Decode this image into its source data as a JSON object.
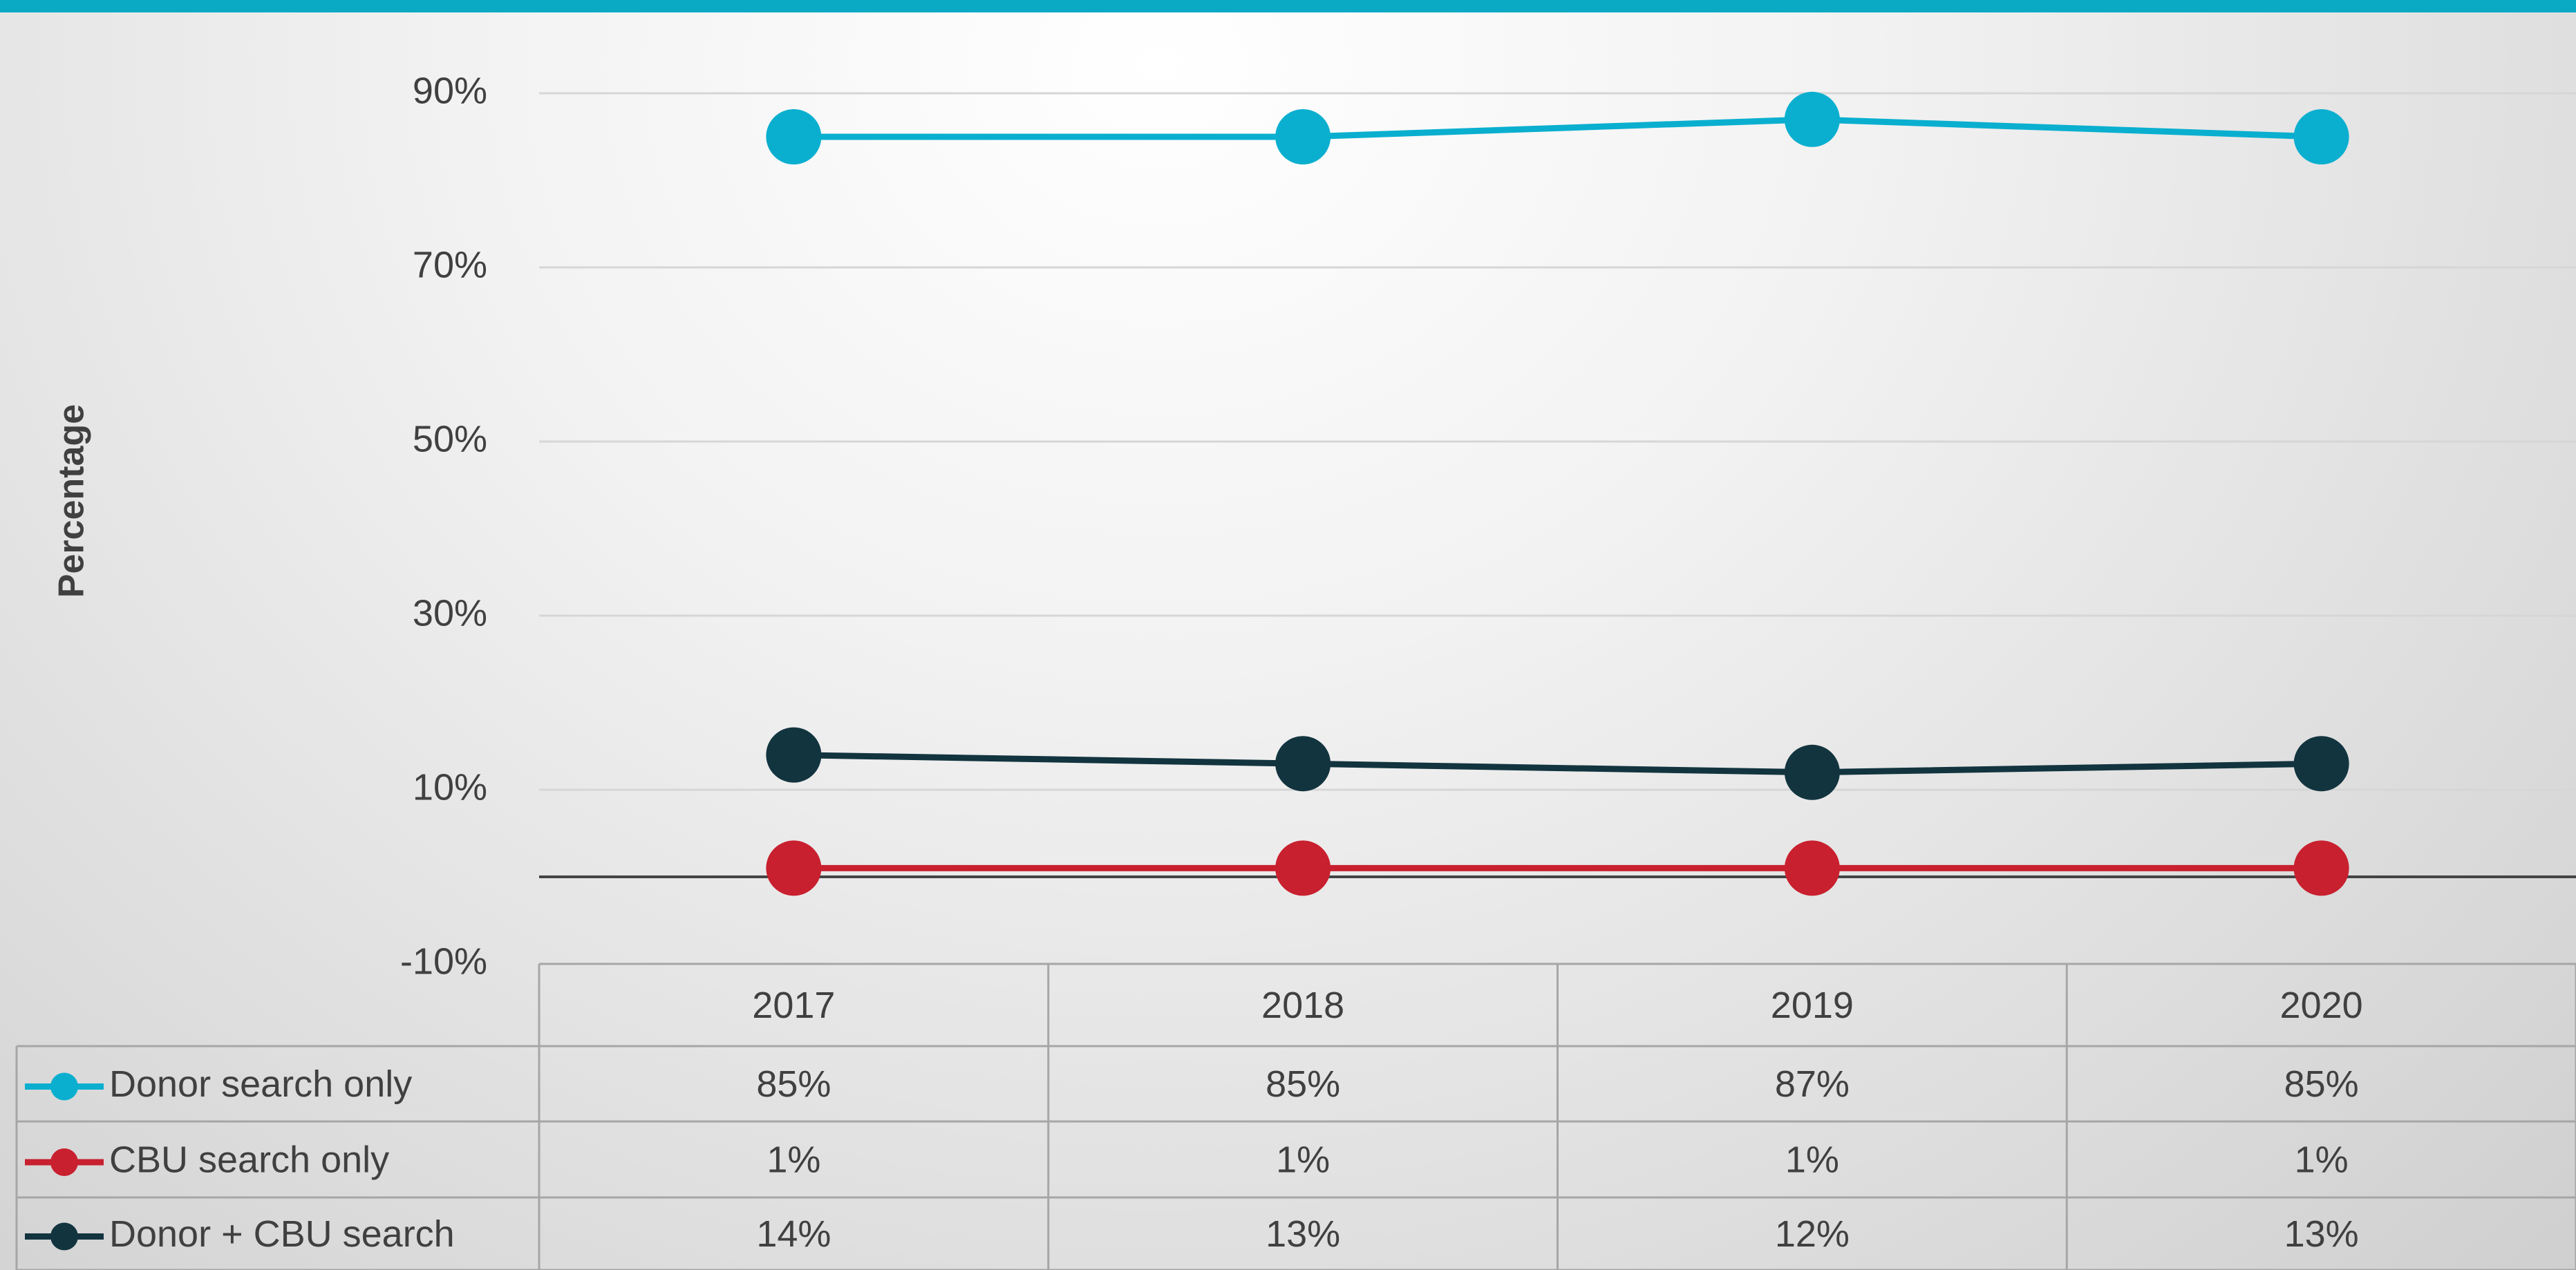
{
  "chart_data": {
    "type": "line",
    "axis_label_y": "Percentage",
    "categories": [
      "2017",
      "2018",
      "2019",
      "2020"
    ],
    "series": [
      {
        "name": "Donor search only",
        "color": "#0aafcf",
        "values": [
          85,
          85,
          87,
          85
        ],
        "value_labels": [
          "85%",
          "85%",
          "87%",
          "85%"
        ]
      },
      {
        "name": "CBU search only",
        "color": "#c8202f",
        "values": [
          1,
          1,
          1,
          1
        ],
        "value_labels": [
          "1%",
          "1%",
          "1%",
          "1%"
        ]
      },
      {
        "name": "Donor + CBU search",
        "color": "#12343f",
        "values": [
          14,
          13,
          12,
          13
        ],
        "value_labels": [
          "14%",
          "13%",
          "12%",
          "13%"
        ]
      }
    ],
    "ylim": [
      -10,
      90
    ],
    "yticks": [
      {
        "value": -10,
        "label": "-10%"
      },
      {
        "value": 10,
        "label": "10%"
      },
      {
        "value": 30,
        "label": "30%"
      },
      {
        "value": 50,
        "label": "50%"
      },
      {
        "value": 70,
        "label": "70%"
      },
      {
        "value": 90,
        "label": "90%"
      }
    ],
    "grid": true
  }
}
